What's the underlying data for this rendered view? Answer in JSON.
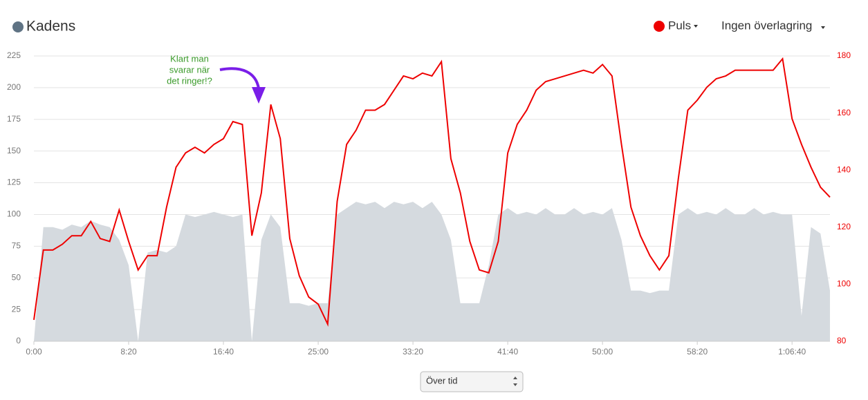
{
  "chart_data": {
    "type": "area-line",
    "x": [
      0,
      50,
      100,
      150,
      200,
      250,
      300,
      350,
      400,
      450,
      500,
      550,
      600,
      650,
      700,
      750,
      800,
      850,
      900,
      950,
      1000,
      1050,
      1100,
      1150,
      1200,
      1250,
      1300,
      1350,
      1400,
      1450,
      1500,
      1550,
      1600,
      1650,
      1700,
      1750,
      1800,
      1850,
      1900,
      1950,
      2000,
      2050,
      2100,
      2150,
      2200,
      2250,
      2300,
      2350,
      2400,
      2450,
      2500,
      2550,
      2600,
      2650,
      2700,
      2750,
      2800,
      2850,
      2900,
      2950,
      3000,
      3050,
      3100,
      3150,
      3200,
      3250,
      3300,
      3350,
      3400,
      3450,
      3500,
      3550,
      3600,
      3650,
      3700,
      3750,
      3800,
      3850,
      3900,
      3950,
      4000,
      4050,
      4100,
      4150,
      4200
    ],
    "series": [
      {
        "name": "Kadens",
        "color": "#5f7384",
        "fill": "#d5dadf",
        "values": [
          0,
          90,
          90,
          88,
          92,
          90,
          95,
          92,
          90,
          80,
          60,
          0,
          70,
          72,
          70,
          75,
          100,
          98,
          100,
          102,
          100,
          98,
          100,
          0,
          80,
          100,
          90,
          30,
          30,
          28,
          30,
          30,
          100,
          105,
          110,
          108,
          110,
          105,
          110,
          108,
          110,
          105,
          110,
          100,
          80,
          30,
          30,
          30,
          60,
          100,
          105,
          100,
          102,
          100,
          105,
          100,
          100,
          105,
          100,
          102,
          100,
          105,
          80,
          40,
          40,
          38,
          40,
          40,
          100,
          105,
          100,
          102,
          100,
          105,
          100,
          100,
          105,
          100,
          102,
          100,
          100,
          20,
          90,
          85,
          40
        ]
      },
      {
        "name": "Puls",
        "color": "#ee0000",
        "axis": "y2",
        "values": [
          87.5,
          112,
          112,
          114,
          117,
          117,
          122,
          116,
          115,
          126,
          115,
          105,
          110,
          110,
          127,
          141,
          146,
          148,
          146,
          149,
          151,
          157,
          156,
          117,
          132,
          163,
          151,
          116,
          103,
          95.5,
          93,
          86,
          129,
          149,
          154,
          161,
          161,
          163,
          168,
          173,
          172,
          174,
          173,
          178,
          144,
          132,
          115,
          105,
          104,
          115,
          146,
          156,
          161,
          168,
          171,
          172,
          173,
          174,
          175,
          174,
          177,
          173,
          149,
          127,
          117,
          110,
          105,
          110,
          137,
          161,
          164.5,
          169,
          172,
          173,
          175,
          175,
          175,
          175,
          175,
          179,
          158,
          149,
          141,
          134,
          130.5
        ]
      }
    ],
    "xlim": [
      0,
      4200
    ],
    "xticks": [
      {
        "value": 0,
        "label": "0:00"
      },
      {
        "value": 500,
        "label": "8:20"
      },
      {
        "value": 1000,
        "label": "16:40"
      },
      {
        "value": 1500,
        "label": "25:00"
      },
      {
        "value": 2000,
        "label": "33:20"
      },
      {
        "value": 2500,
        "label": "41:40"
      },
      {
        "value": 3000,
        "label": "50:00"
      },
      {
        "value": 3500,
        "label": "58:20"
      },
      {
        "value": 4000,
        "label": "1:06:40"
      }
    ],
    "ylim": [
      0,
      225
    ],
    "yticks": [
      0,
      25,
      50,
      75,
      100,
      125,
      150,
      175,
      200,
      225
    ],
    "y2lim": [
      80,
      180
    ],
    "y2ticks": [
      80,
      100,
      120,
      140,
      160,
      180
    ],
    "grid": true,
    "annotation": [
      "Klart man",
      "svarar när",
      "det ringer!?"
    ]
  },
  "controls": {
    "overlay_menu": "Ingen överlagring",
    "x_mode_select": "Över tid"
  }
}
